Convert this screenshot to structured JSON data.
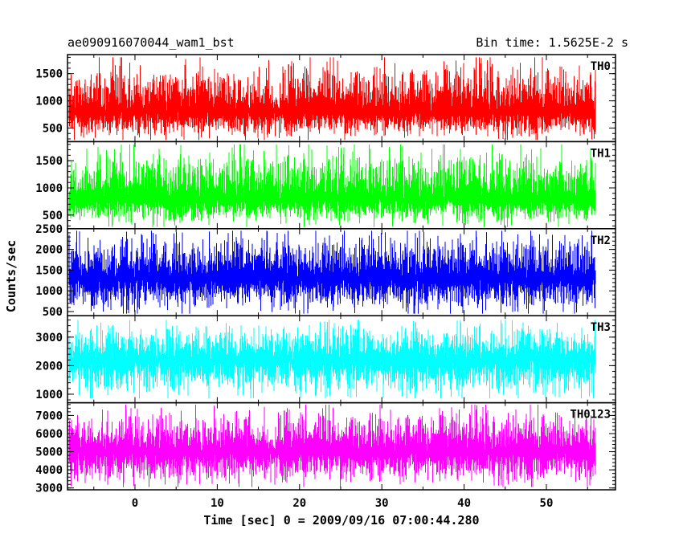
{
  "header": {
    "title": "ae090916070044_wam1_bst",
    "bin_time": "Bin time: 1.5625E-2 s"
  },
  "chart_data": {
    "type": "line",
    "title": "ae090916070044_wam1_bst",
    "bin_time": "Bin time: 1.5625E-2 s",
    "xlabel": "Time [sec] 0 = 2009/09/16 07:00:44.280",
    "ylabel": "Counts/sec",
    "xlim": [
      -8.2,
      58.4
    ],
    "x_ticks": [
      0,
      10,
      20,
      30,
      40,
      50
    ],
    "data_x_range": [
      -8,
      56
    ],
    "grid": false,
    "panels": [
      {
        "name": "TH0",
        "color": "#ff0000",
        "ylim": [
          250,
          1850
        ],
        "y_ticks": [
          500,
          1000,
          1500
        ],
        "mean": 800,
        "low": 280,
        "high": 1800
      },
      {
        "name": "TH1",
        "color": "#00ff00",
        "ylim": [
          250,
          1850
        ],
        "y_ticks": [
          500,
          1000,
          1500
        ],
        "mean": 800,
        "low": 280,
        "high": 1800
      },
      {
        "name": "TH2",
        "color": "#0000ff",
        "ylim": [
          400,
          2500
        ],
        "y_ticks": [
          500,
          1000,
          1500,
          2000,
          2500
        ],
        "mean": 1300,
        "low": 450,
        "high": 2450
      },
      {
        "name": "TH3",
        "color": "#00ffff",
        "ylim": [
          700,
          3750
        ],
        "y_ticks": [
          1000,
          2000,
          3000
        ],
        "mean": 2200,
        "low": 850,
        "high": 3600
      },
      {
        "name": "TH0123",
        "color": "#ff00ff",
        "ylim": [
          2900,
          7700
        ],
        "y_ticks": [
          3000,
          4000,
          5000,
          6000,
          7000
        ],
        "mean": 5000,
        "low": 3050,
        "high": 7600
      }
    ]
  }
}
